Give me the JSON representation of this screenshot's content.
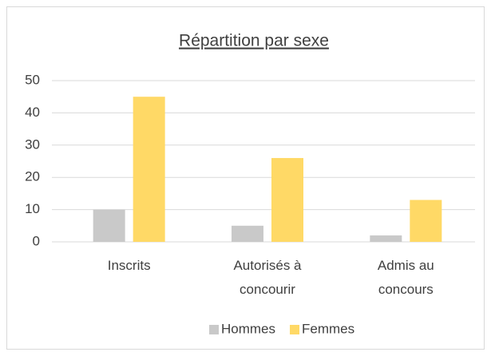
{
  "chart_data": {
    "type": "bar",
    "title": "Répartition par sexe",
    "categories": [
      "Inscrits",
      "Autorisés à concourir",
      "Admis au concours"
    ],
    "series": [
      {
        "name": "Hommes",
        "color": "#c9c9c9",
        "values": [
          10,
          5,
          2
        ]
      },
      {
        "name": "Femmes",
        "color": "#ffd966",
        "values": [
          45,
          26,
          13
        ]
      }
    ],
    "ylim": [
      0,
      50
    ],
    "yticks": [
      0,
      10,
      20,
      30,
      40,
      50
    ],
    "grid": true,
    "legend": "bottom"
  }
}
